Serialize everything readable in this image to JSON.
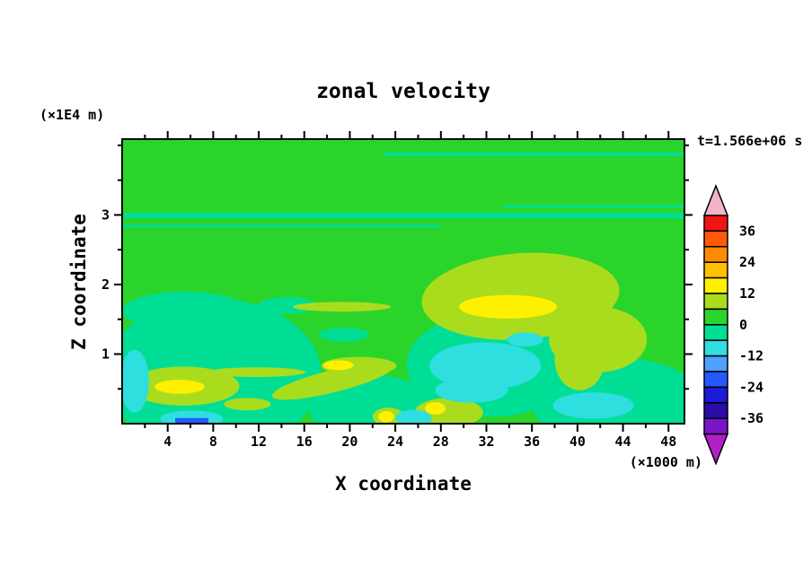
{
  "labels": {
    "title": "zonal velocity",
    "x_axis": "X coordinate",
    "y_axis": "Z coordinate",
    "y_unit": "(×1E4 m)",
    "x_unit": "(×1000 m)",
    "time": "t=1.566e+06 s"
  },
  "chart_data": {
    "type": "heatmap",
    "title": "zonal velocity",
    "xlabel": "X coordinate",
    "ylabel": "Z coordinate",
    "x_unit_label": "(×1000 m)",
    "y_unit_label": "(×1E4 m)",
    "time_annotation": "t=1.566e+06 s",
    "xlim": [
      0,
      49.4
    ],
    "ylim": [
      0,
      4.09
    ],
    "x_ticks": [
      4,
      8,
      12,
      16,
      20,
      24,
      28,
      32,
      36,
      40,
      44,
      48
    ],
    "x_minor_step": 2,
    "y_ticks": [
      1,
      2,
      3
    ],
    "y_minor_step": 0.5,
    "grid": false,
    "colorbar": {
      "position": "right",
      "max": 42,
      "min": -42,
      "step": 6,
      "tick_labels": [
        36,
        24,
        12,
        0,
        -12,
        -24,
        -36
      ],
      "colors_top_to_bottom": [
        "#f01414",
        "#ff5a0a",
        "#ff8c00",
        "#ffc000",
        "#fff000",
        "#aadc1e",
        "#2bd42b",
        "#00de96",
        "#2fdede",
        "#4fa0ff",
        "#2558ff",
        "#1b1bd8",
        "#2a0ca8",
        "#7a14c8"
      ],
      "over_color": "#f2b4c8",
      "under_color": "#b41ec8"
    },
    "palette": {
      "green": "#2bd42b",
      "sg": "#00de96",
      "cy": "#2fdede",
      "bl": "#2558ff",
      "yg": "#aadc1e",
      "ye": "#fff000"
    },
    "background_color": "green",
    "background_band": "0..6",
    "field_summary": "Zonal velocity field is mostly near zero (green, 0..6). Slightly negative (spring green, -6..0) regions cover much of the lower half and form a thin stripe near z=2.9-3.0. Positive patches (yellow-green 6..12 with yellow 12..18 cores) sit near x=27-44 z=1.2-2.4 and x=1-10 z=0.3-0.8, with thin streaks along the bottom. Negative cyan patches (-12..-6) occur near x=27-36 z=0.3-1.2, x=38-45 z=0.1-0.45, and the left edge; a small blue strip (-24..-18) touches the bottom boundary near x=4.7-7.6.",
    "regions": [
      {
        "band": "-6..0",
        "color": "sg",
        "shape": "rect",
        "x0": 0,
        "x1": 49.4,
        "z0": 2.95,
        "z1": 3.03
      },
      {
        "band": "-6..0",
        "color": "sg",
        "shape": "rect",
        "x0": 0,
        "x1": 27.9,
        "z0": 2.82,
        "z1": 2.86
      },
      {
        "band": "-6..0",
        "color": "sg",
        "shape": "rect",
        "x0": 33.5,
        "x1": 49.4,
        "z0": 3.1,
        "z1": 3.14
      },
      {
        "band": "-6..0",
        "color": "sg",
        "shape": "rect",
        "x0": 23,
        "x1": 49.4,
        "z0": 3.85,
        "z1": 3.9
      },
      {
        "band": "-6..0",
        "color": "sg",
        "shape": "ellipse",
        "cx": 8.0,
        "cy": 0.7,
        "rx": 9.5,
        "ry": 1.1
      },
      {
        "band": "-6..0",
        "color": "sg",
        "shape": "ellipse",
        "cx": 5.5,
        "cy": 1.62,
        "rx": 5.5,
        "ry": 0.28
      },
      {
        "band": "-6..0",
        "color": "sg",
        "shape": "ellipse",
        "cx": 22.0,
        "cy": 0.2,
        "rx": 5.5,
        "ry": 0.5
      },
      {
        "band": "-6..0",
        "color": "sg",
        "shape": "ellipse",
        "cx": 32.5,
        "cy": 0.85,
        "rx": 7.5,
        "ry": 0.75
      },
      {
        "band": "-6..0",
        "color": "sg",
        "shape": "ellipse",
        "cx": 43.5,
        "cy": 0.3,
        "rx": 7.5,
        "ry": 0.65
      },
      {
        "band": "-6..0",
        "color": "sg",
        "shape": "ellipse",
        "cx": 14.5,
        "cy": 1.7,
        "rx": 2.5,
        "ry": 0.12
      },
      {
        "band": "-6..0",
        "color": "sg",
        "shape": "ellipse",
        "cx": 19.5,
        "cy": 1.28,
        "rx": 2.2,
        "ry": 0.1
      },
      {
        "band": "6..12",
        "color": "yg",
        "shape": "ellipse",
        "cx": 35.0,
        "cy": 1.83,
        "rx": 8.7,
        "ry": 0.62,
        "rot": -4
      },
      {
        "band": "6..12",
        "color": "yg",
        "shape": "ellipse",
        "cx": 41.8,
        "cy": 1.21,
        "rx": 4.3,
        "ry": 0.47
      },
      {
        "band": "6..12",
        "color": "yg",
        "shape": "ellipse",
        "cx": 40.2,
        "cy": 0.93,
        "rx": 2.2,
        "ry": 0.45
      },
      {
        "band": "6..12",
        "color": "yg",
        "shape": "ellipse",
        "cx": 5.4,
        "cy": 0.54,
        "rx": 4.9,
        "ry": 0.28
      },
      {
        "band": "6..12",
        "color": "yg",
        "shape": "ellipse",
        "cx": 18.5,
        "cy": 0.61,
        "rx": 5.5,
        "ry": 0.16,
        "rot": -14
      },
      {
        "band": "6..12",
        "color": "yg",
        "shape": "ellipse",
        "cx": 20.8,
        "cy": 0.83,
        "rx": 3.3,
        "ry": 0.13
      },
      {
        "band": "6..12",
        "color": "yg",
        "shape": "ellipse",
        "cx": 28.7,
        "cy": 0.16,
        "rx": 3.0,
        "ry": 0.21
      },
      {
        "band": "6..12",
        "color": "yg",
        "shape": "ellipse",
        "cx": 23.4,
        "cy": 0.1,
        "rx": 1.4,
        "ry": 0.13
      },
      {
        "band": "6..12",
        "color": "yg",
        "shape": "ellipse",
        "cx": 19.3,
        "cy": 1.68,
        "rx": 4.3,
        "ry": 0.07
      },
      {
        "band": "6..12",
        "color": "yg",
        "shape": "ellipse",
        "cx": 11.0,
        "cy": 0.28,
        "rx": 2.05,
        "ry": 0.09
      },
      {
        "band": "6..12",
        "color": "yg",
        "shape": "ellipse",
        "cx": 11.8,
        "cy": 0.74,
        "rx": 4.3,
        "ry": 0.07
      },
      {
        "band": "12..18",
        "color": "ye",
        "shape": "ellipse",
        "cx": 33.9,
        "cy": 1.68,
        "rx": 4.3,
        "ry": 0.17
      },
      {
        "band": "12..18",
        "color": "ye",
        "shape": "ellipse",
        "cx": 5.05,
        "cy": 0.53,
        "rx": 2.2,
        "ry": 0.1
      },
      {
        "band": "12..18",
        "color": "ye",
        "shape": "ellipse",
        "cx": 19.0,
        "cy": 0.84,
        "rx": 1.34,
        "ry": 0.07
      },
      {
        "band": "12..18",
        "color": "ye",
        "shape": "ellipse",
        "cx": 23.2,
        "cy": 0.1,
        "rx": 0.7,
        "ry": 0.08
      },
      {
        "band": "12..18",
        "color": "ye",
        "shape": "ellipse",
        "cx": 27.5,
        "cy": 0.22,
        "rx": 0.9,
        "ry": 0.09
      },
      {
        "band": "-12..-6",
        "color": "cy",
        "shape": "ellipse",
        "cx": 31.9,
        "cy": 0.83,
        "rx": 4.9,
        "ry": 0.34
      },
      {
        "band": "-12..-6",
        "color": "cy",
        "shape": "ellipse",
        "cx": 30.7,
        "cy": 0.48,
        "rx": 3.2,
        "ry": 0.18
      },
      {
        "band": "-12..-6",
        "color": "cy",
        "shape": "ellipse",
        "cx": 35.4,
        "cy": 1.21,
        "rx": 1.6,
        "ry": 0.1
      },
      {
        "band": "-12..-6",
        "color": "cy",
        "shape": "ellipse",
        "cx": 41.4,
        "cy": 0.26,
        "rx": 3.55,
        "ry": 0.19
      },
      {
        "band": "-12..-6",
        "color": "cy",
        "shape": "ellipse",
        "cx": 1.1,
        "cy": 0.61,
        "rx": 1.26,
        "ry": 0.45
      },
      {
        "band": "-12..-6",
        "color": "cy",
        "shape": "ellipse",
        "cx": 6.1,
        "cy": 0.07,
        "rx": 2.76,
        "ry": 0.12
      },
      {
        "band": "-12..-6",
        "color": "cy",
        "shape": "ellipse",
        "cx": 25.6,
        "cy": 0.08,
        "rx": 1.6,
        "ry": 0.12
      },
      {
        "band": "-24..-18",
        "color": "bl",
        "shape": "rect",
        "x0": 4.66,
        "x1": 7.58,
        "z0": 0,
        "z1": 0.08
      }
    ]
  }
}
